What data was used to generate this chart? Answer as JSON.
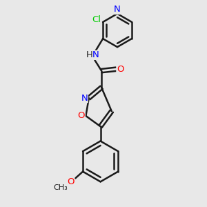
{
  "bg_color": "#e8e8e8",
  "bond_color": "#1a1a1a",
  "N_color": "#0000ff",
  "O_color": "#ff0000",
  "Cl_color": "#00cc00",
  "line_width": 1.8,
  "font_size": 9.5,
  "fig_size": [
    3.0,
    3.0
  ],
  "dpi": 100,
  "xlim": [
    0,
    10
  ],
  "ylim": [
    0,
    10
  ]
}
